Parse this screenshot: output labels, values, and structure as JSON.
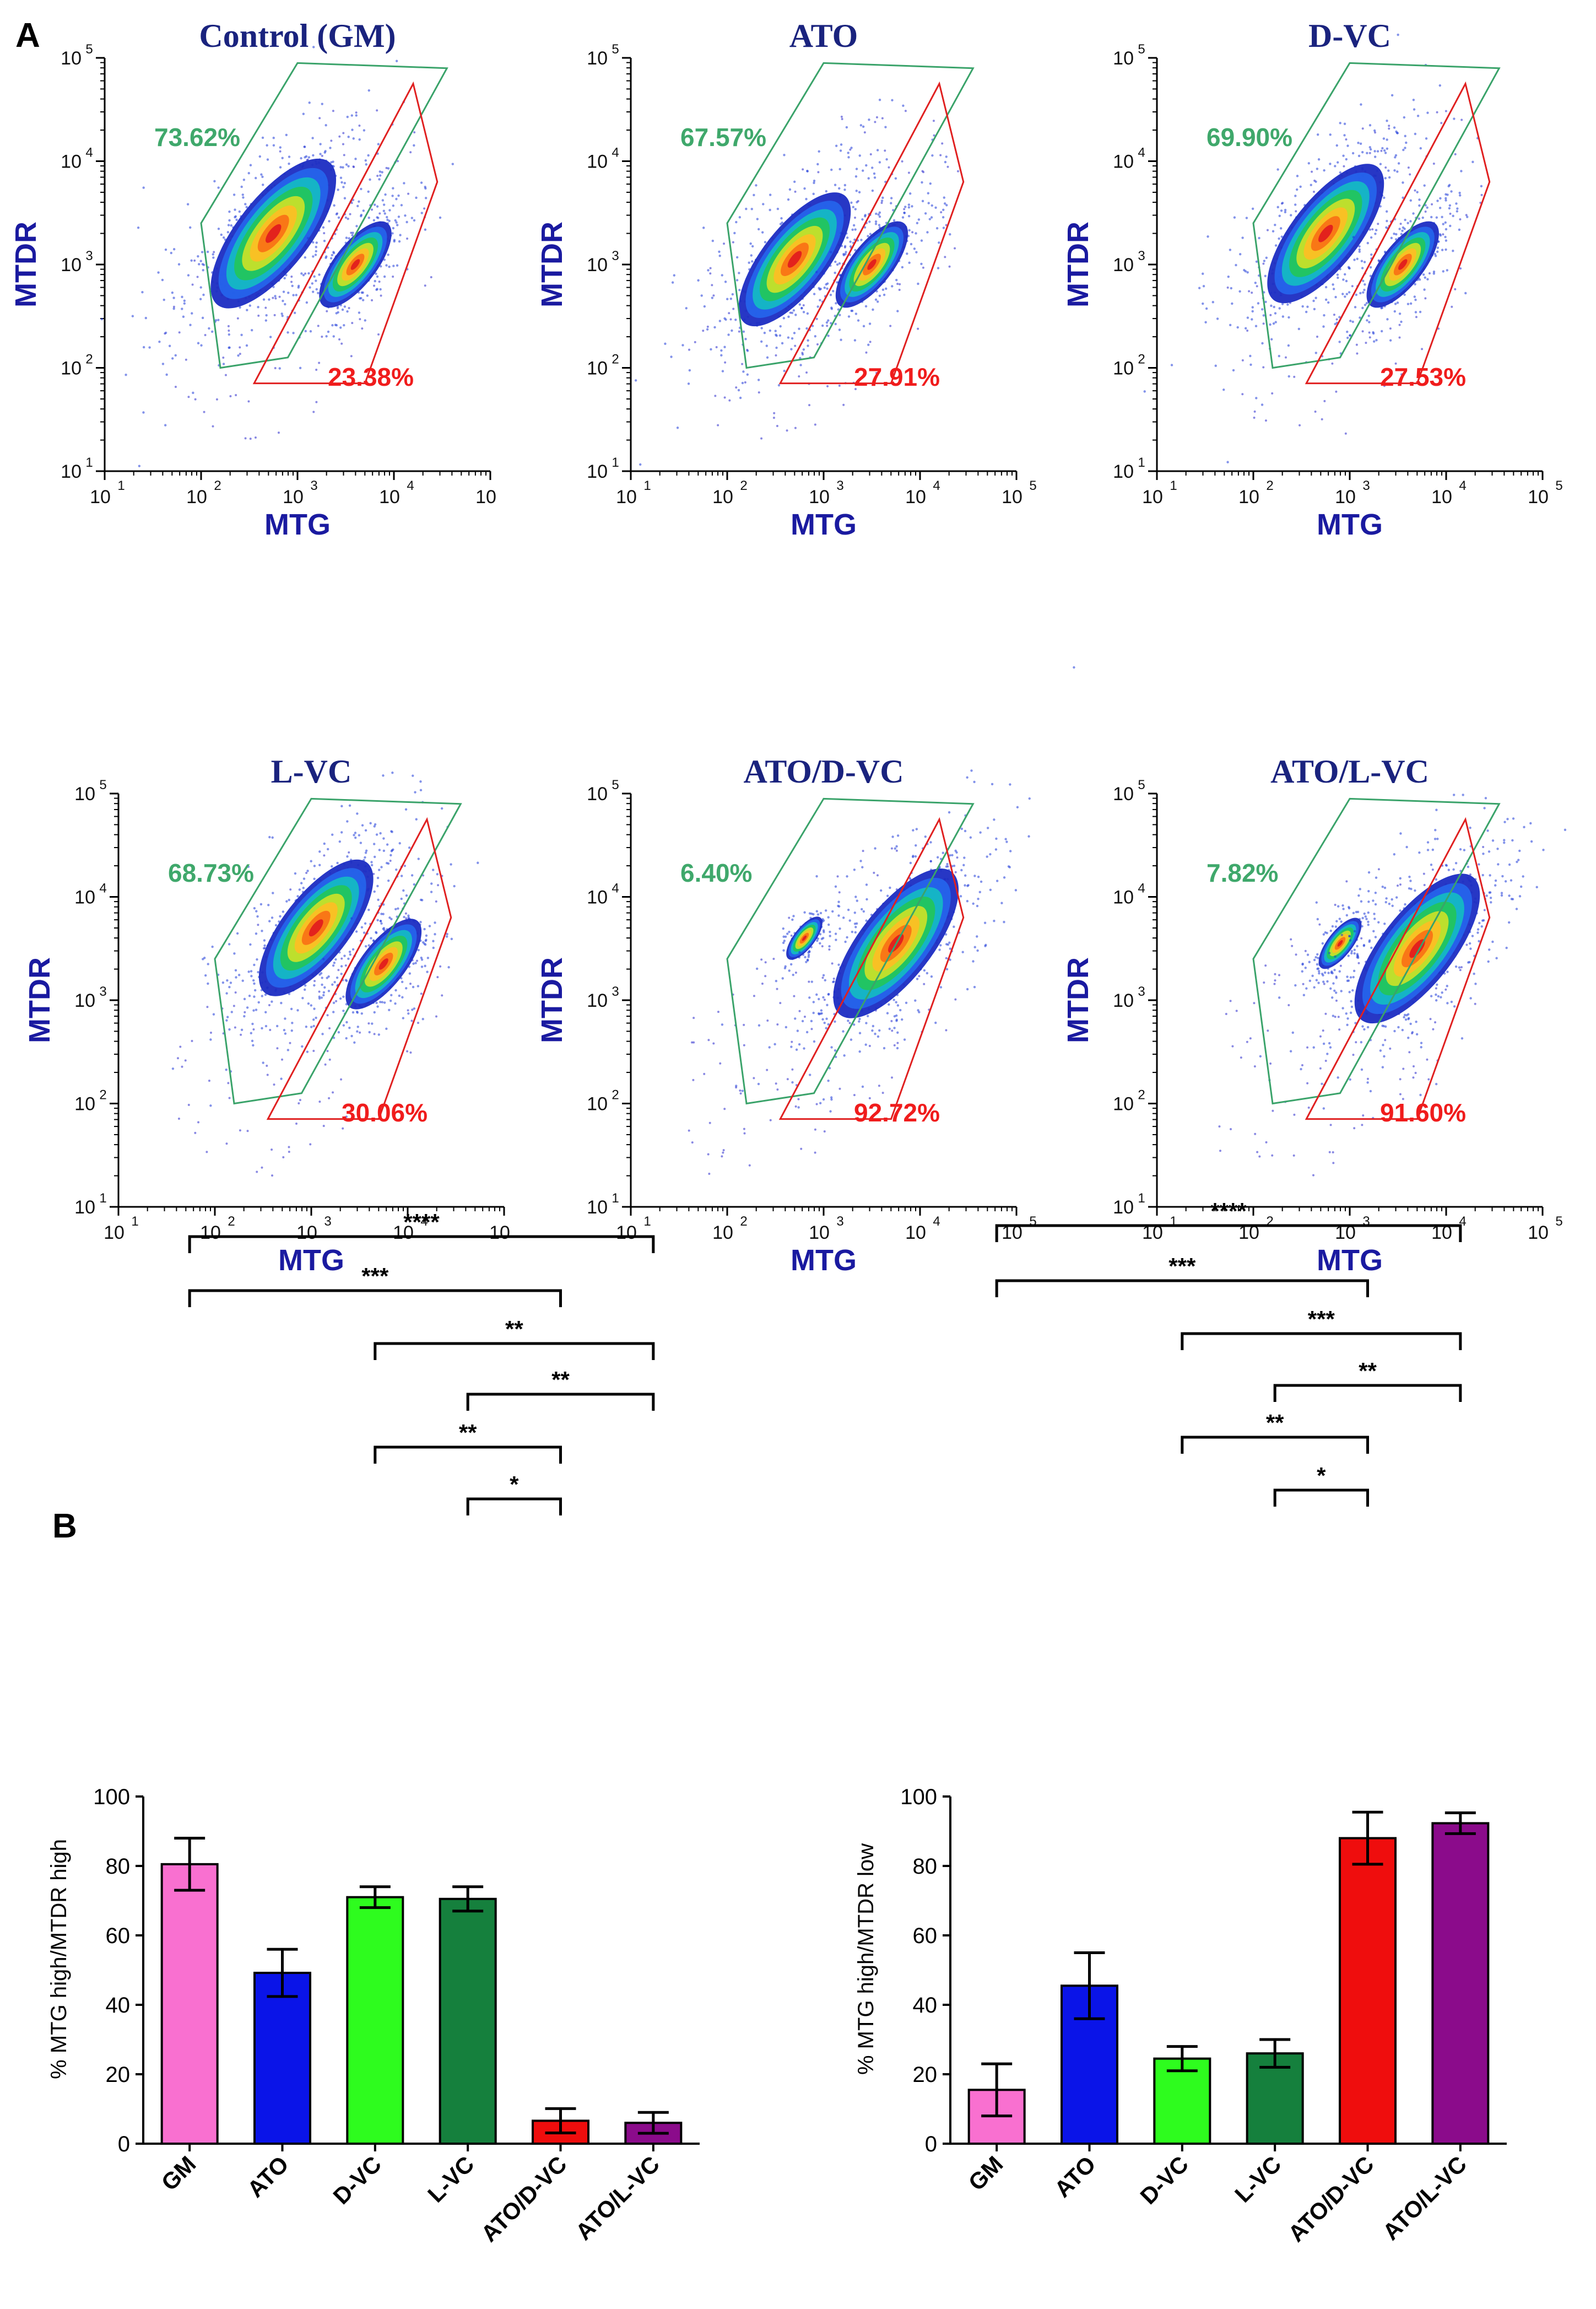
{
  "panel_labels": {
    "a": "A",
    "b": "B"
  },
  "colors": {
    "title": "#1a237e",
    "axis_name": "#1a1aa0",
    "gate_green": "#3aa36a",
    "gate_red": "#e02020",
    "pct_green": "#3fa86b",
    "pct_red": "#f01c1c"
  },
  "chart_data": [
    {
      "type": "scatter",
      "title": "Control (GM)",
      "xlabel": "MTG",
      "ylabel": "MTDR",
      "xticks": [
        "10",
        "10",
        "10",
        "10",
        "10"
      ],
      "xtick_exp": [
        "1",
        "2",
        "3",
        "4",
        ""
      ],
      "yticks": [
        "10",
        "10",
        "10",
        "10",
        "10"
      ],
      "ytick_exp": [
        "1",
        "2",
        "3",
        "4",
        "5"
      ],
      "gate_high_pct": "73.62%",
      "gate_low_pct": "23.38%",
      "populations": [
        {
          "x_log": 2.75,
          "y_log": 3.3,
          "weight": 3.0
        },
        {
          "x_log": 3.6,
          "y_log": 3.0,
          "weight": 1.0
        }
      ]
    },
    {
      "type": "scatter",
      "title": "ATO",
      "xlabel": "MTG",
      "ylabel": "MTDR",
      "xticks": [
        "10",
        "10",
        "10",
        "10",
        "10"
      ],
      "xtick_exp": [
        "1",
        "2",
        "3",
        "4",
        "5"
      ],
      "yticks": [
        "10",
        "10",
        "10",
        "10",
        "10"
      ],
      "ytick_exp": [
        "1",
        "2",
        "3",
        "4",
        "5"
      ],
      "gate_high_pct": "67.57%",
      "gate_low_pct": "27.91%",
      "populations": [
        {
          "x_log": 2.7,
          "y_log": 3.05,
          "weight": 2.4
        },
        {
          "x_log": 3.5,
          "y_log": 3.0,
          "weight": 1.0
        }
      ]
    },
    {
      "type": "scatter",
      "title": "D-VC",
      "xlabel": "MTG",
      "ylabel": "MTDR",
      "xticks": [
        "10",
        "10",
        "10",
        "10",
        "10"
      ],
      "xtick_exp": [
        "1",
        "2",
        "3",
        "4",
        "5"
      ],
      "yticks": [
        "10",
        "10",
        "10",
        "10",
        "10"
      ],
      "ytick_exp": [
        "1",
        "2",
        "3",
        "4",
        "5"
      ],
      "gate_high_pct": "69.90%",
      "gate_low_pct": "27.53%",
      "populations": [
        {
          "x_log": 2.75,
          "y_log": 3.3,
          "weight": 2.6
        },
        {
          "x_log": 3.55,
          "y_log": 3.0,
          "weight": 1.0
        }
      ]
    },
    {
      "type": "scatter",
      "title": "L-VC",
      "xlabel": "MTG",
      "ylabel": "MTDR",
      "xticks": [
        "10",
        "10",
        "10",
        "10",
        "10"
      ],
      "xtick_exp": [
        "1",
        "2",
        "3",
        "4",
        ""
      ],
      "yticks": [
        "10",
        "10",
        "10",
        "10",
        "10"
      ],
      "ytick_exp": [
        "1",
        "2",
        "3",
        "4",
        "5"
      ],
      "gate_high_pct": "68.73%",
      "gate_low_pct": "30.06%",
      "populations": [
        {
          "x_log": 3.05,
          "y_log": 3.7,
          "weight": 2.5
        },
        {
          "x_log": 3.75,
          "y_log": 3.35,
          "weight": 1.1
        }
      ]
    },
    {
      "type": "scatter",
      "title": "ATO/D-VC",
      "xlabel": "MTG",
      "ylabel": "MTDR",
      "xticks": [
        "10",
        "10",
        "10",
        "10",
        "10"
      ],
      "xtick_exp": [
        "1",
        "2",
        "3",
        "4",
        "5"
      ],
      "yticks": [
        "10",
        "10",
        "10",
        "10",
        "10"
      ],
      "ytick_exp": [
        "1",
        "2",
        "3",
        "4",
        "5"
      ],
      "gate_high_pct": "6.40%",
      "gate_low_pct": "92.72%",
      "populations": [
        {
          "x_log": 2.8,
          "y_log": 3.6,
          "weight": 0.25
        },
        {
          "x_log": 3.75,
          "y_log": 3.55,
          "weight": 3.0
        }
      ]
    },
    {
      "type": "scatter",
      "title": "ATO/L-VC",
      "xlabel": "MTG",
      "ylabel": "MTDR",
      "xticks": [
        "10",
        "10",
        "10",
        "10",
        "10"
      ],
      "xtick_exp": [
        "1",
        "2",
        "3",
        "4",
        "5"
      ],
      "yticks": [
        "10",
        "10",
        "10",
        "10",
        "10"
      ],
      "ytick_exp": [
        "1",
        "2",
        "3",
        "4",
        "5"
      ],
      "gate_high_pct": "7.82%",
      "gate_low_pct": "91.60%",
      "populations": [
        {
          "x_log": 2.9,
          "y_log": 3.55,
          "weight": 0.35
        },
        {
          "x_log": 3.7,
          "y_log": 3.5,
          "weight": 3.0
        }
      ]
    },
    {
      "type": "bar",
      "ylabel": "% MTG high/MTDR high",
      "categories": [
        "GM",
        "ATO",
        "D-VC",
        "L-VC",
        "ATO/D-VC",
        "ATO/L-VC"
      ],
      "values": [
        80.5,
        49.2,
        71.0,
        70.5,
        6.6,
        6.0
      ],
      "errors": [
        7.5,
        6.8,
        3.0,
        3.5,
        3.5,
        3.0
      ],
      "bar_colors": [
        "#f970d0",
        "#0a14e8",
        "#2efc1e",
        "#15803d",
        "#ef0d0d",
        "#8b0b8b"
      ],
      "ylim": [
        0,
        100
      ],
      "yticks": [
        "0",
        "20",
        "40",
        "60",
        "80",
        "100"
      ],
      "significance": [
        {
          "from": 0,
          "to": 5,
          "label": "****"
        },
        {
          "from": 0,
          "to": 4,
          "label": "***"
        },
        {
          "from": 2,
          "to": 5,
          "label": "**"
        },
        {
          "from": 3,
          "to": 5,
          "label": "**"
        },
        {
          "from": 2,
          "to": 4,
          "label": "**"
        },
        {
          "from": 3,
          "to": 4,
          "label": "*"
        }
      ]
    },
    {
      "type": "bar",
      "ylabel": "% MTG high/MTDR low",
      "categories": [
        "GM",
        "ATO",
        "D-VC",
        "L-VC",
        "ATO/D-VC",
        "ATO/L-VC"
      ],
      "values": [
        15.5,
        45.5,
        24.5,
        26.0,
        88.0,
        92.3
      ],
      "errors": [
        7.5,
        9.5,
        3.5,
        4.0,
        7.5,
        3.0
      ],
      "bar_colors": [
        "#f970d0",
        "#0a14e8",
        "#2efc1e",
        "#15803d",
        "#ef0d0d",
        "#8b0b8b"
      ],
      "ylim": [
        0,
        100
      ],
      "yticks": [
        "0",
        "20",
        "40",
        "60",
        "80",
        "100"
      ],
      "significance": [
        {
          "from": 0,
          "to": 5,
          "label": "****"
        },
        {
          "from": 0,
          "to": 4,
          "label": "***"
        },
        {
          "from": 2,
          "to": 5,
          "label": "***"
        },
        {
          "from": 3,
          "to": 5,
          "label": "**"
        },
        {
          "from": 2,
          "to": 4,
          "label": "**"
        },
        {
          "from": 3,
          "to": 4,
          "label": "*"
        }
      ]
    }
  ]
}
